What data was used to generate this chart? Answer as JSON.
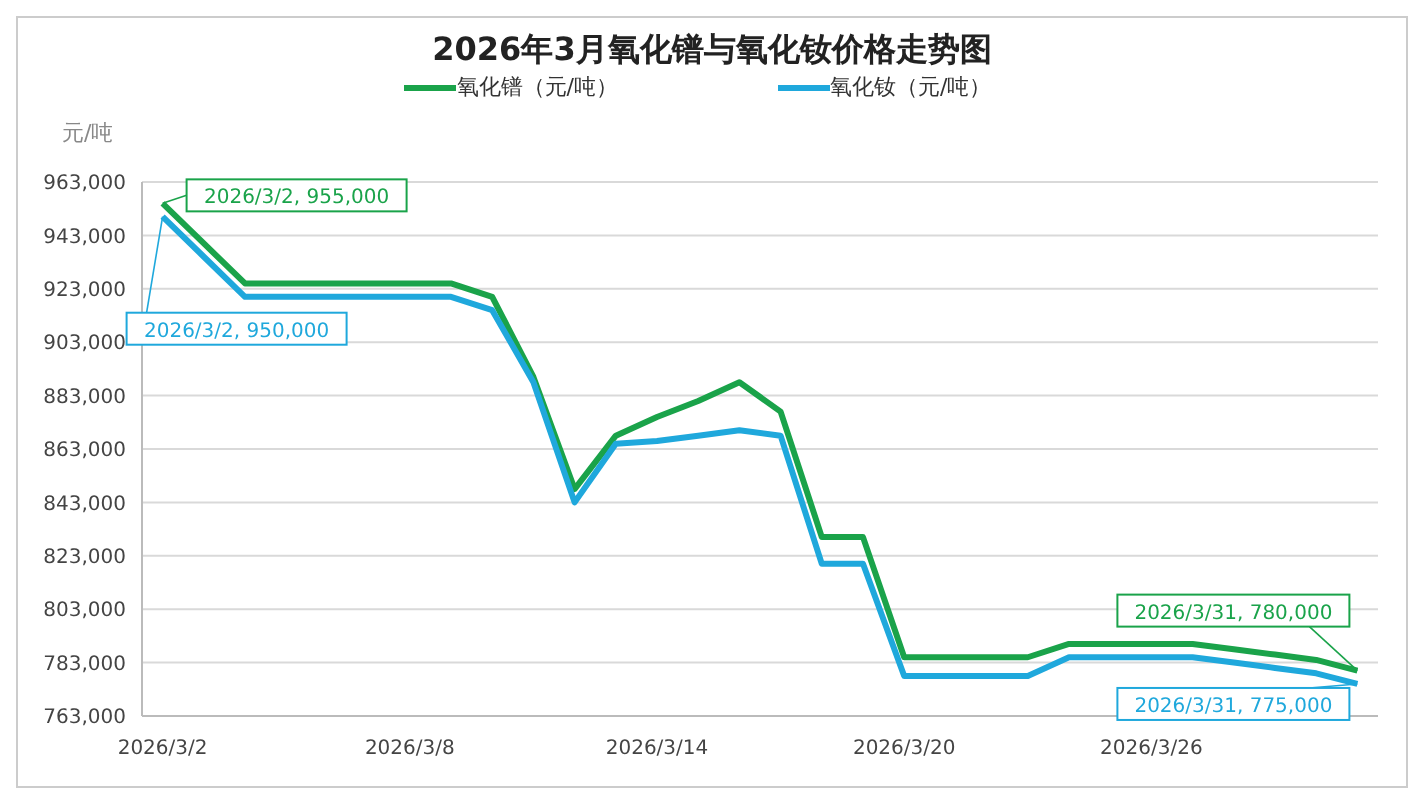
{
  "chart_data": {
    "type": "line",
    "title": "2026年3月氧化镨与氧化钕价格走势图",
    "ylabel": "元/吨",
    "x": [
      "2026-03-02",
      "2026-03-03",
      "2026-03-04",
      "2026-03-05",
      "2026-03-06",
      "2026-03-07",
      "2026-03-08",
      "2026-03-09",
      "2026-03-10",
      "2026-03-11",
      "2026-03-12",
      "2026-03-13",
      "2026-03-14",
      "2026-03-15",
      "2026-03-16",
      "2026-03-17",
      "2026-03-18",
      "2026-03-19",
      "2026-03-20",
      "2026-03-21",
      "2026-03-22",
      "2026-03-23",
      "2026-03-24",
      "2026-03-25",
      "2026-03-26",
      "2026-03-27",
      "2026-03-28",
      "2026-03-29",
      "2026-03-30",
      "2026-03-31"
    ],
    "series": [
      {
        "name": "氧化镨（元/吨）",
        "color": "#1aa34a",
        "values": [
          955000,
          940000,
          925000,
          925000,
          925000,
          925000,
          925000,
          925000,
          920000,
          890000,
          848000,
          868000,
          875000,
          881000,
          888000,
          877000,
          830000,
          830000,
          785000,
          785000,
          785000,
          785000,
          790000,
          790000,
          790000,
          790000,
          788000,
          786000,
          784000,
          780000
        ]
      },
      {
        "name": "氧化钕（元/吨）",
        "color": "#1fa8dc",
        "values": [
          950000,
          935000,
          920000,
          920000,
          920000,
          920000,
          920000,
          920000,
          915000,
          888000,
          843000,
          865000,
          866000,
          868000,
          870000,
          868000,
          820000,
          820000,
          778000,
          778000,
          778000,
          778000,
          785000,
          785000,
          785000,
          785000,
          783000,
          781000,
          779000,
          775000
        ]
      }
    ],
    "xlim": [
      "2026-03-01T12:00",
      "2026-03-31T12:00"
    ],
    "xticks": [
      {
        "value": "2026-03-02",
        "label": "2026/3/2"
      },
      {
        "value": "2026-03-08",
        "label": "2026/3/8"
      },
      {
        "value": "2026-03-14",
        "label": "2026/3/14"
      },
      {
        "value": "2026-03-20",
        "label": "2026/3/20"
      },
      {
        "value": "2026-03-26",
        "label": "2026/3/26"
      }
    ],
    "ylim": [
      763000,
      963000
    ],
    "yticks": [
      {
        "value": 763000,
        "label": "763,000"
      },
      {
        "value": 783000,
        "label": "783,000"
      },
      {
        "value": 803000,
        "label": "803,000"
      },
      {
        "value": 823000,
        "label": "823,000"
      },
      {
        "value": 843000,
        "label": "843,000"
      },
      {
        "value": 863000,
        "label": "863,000"
      },
      {
        "value": 883000,
        "label": "883,000"
      },
      {
        "value": 903000,
        "label": "903,000"
      },
      {
        "value": 923000,
        "label": "923,000"
      },
      {
        "value": 943000,
        "label": "943,000"
      },
      {
        "value": 963000,
        "label": "963,000"
      }
    ],
    "annotations": [
      {
        "text": "2026/3/2, 955,000",
        "x": "2026-03-02",
        "y": 955000
      },
      {
        "text": "2026/3/2, 950,000",
        "x": "2026-03-02",
        "y": 950000
      },
      {
        "text": "2026/3/31, 780,000",
        "x": "2026-03-31",
        "y": 780000
      },
      {
        "text": "2026/3/31, 775,000",
        "x": "2026-03-31",
        "y": 775000
      }
    ],
    "grid": "y",
    "legend": "top",
    "marker": "none",
    "line_style": "solid"
  }
}
